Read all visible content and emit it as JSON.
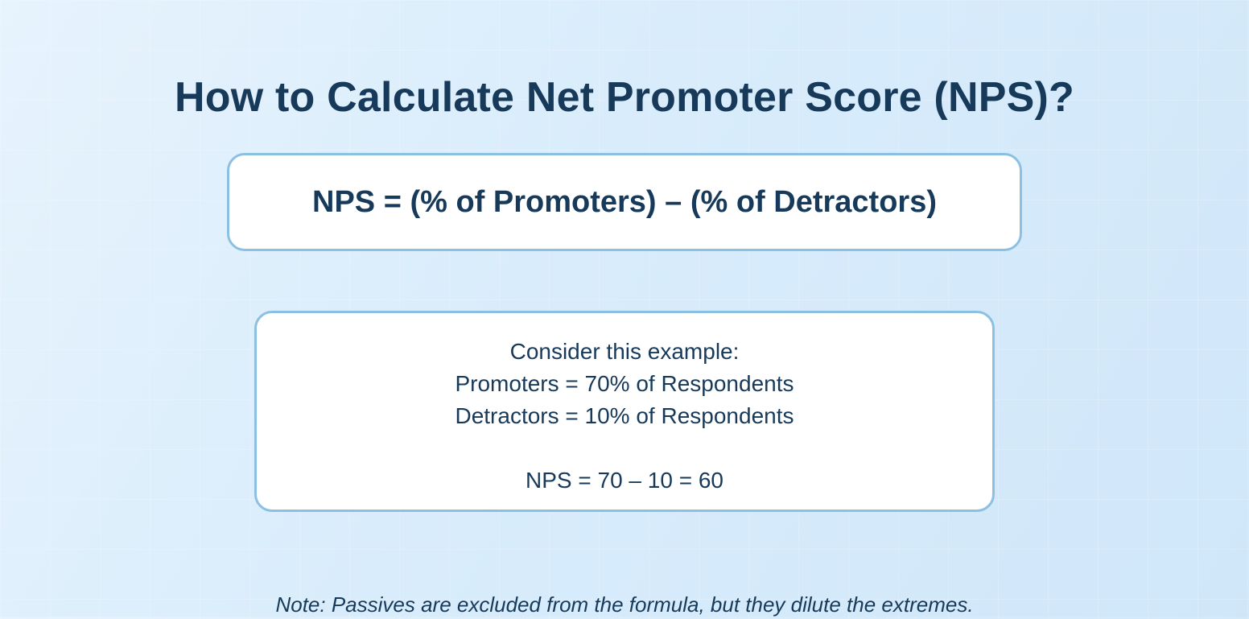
{
  "title": "How to Calculate Net Promoter Score (NPS)?",
  "formula": "NPS = (% of Promoters) – (% of Detractors)",
  "example": {
    "intro": "Consider this example:",
    "promoters": "Promoters = 70% of Respondents",
    "detractors": "Detractors = 10% of Respondents",
    "result": "NPS = 70 – 10 = 60"
  },
  "note": "Note: Passives are excluded from the formula, but they dilute the extremes.",
  "colors": {
    "text": "#173a5a",
    "card_border": "#8cc0e2",
    "card_background": "#ffffff",
    "background": "#d8ecfb"
  }
}
